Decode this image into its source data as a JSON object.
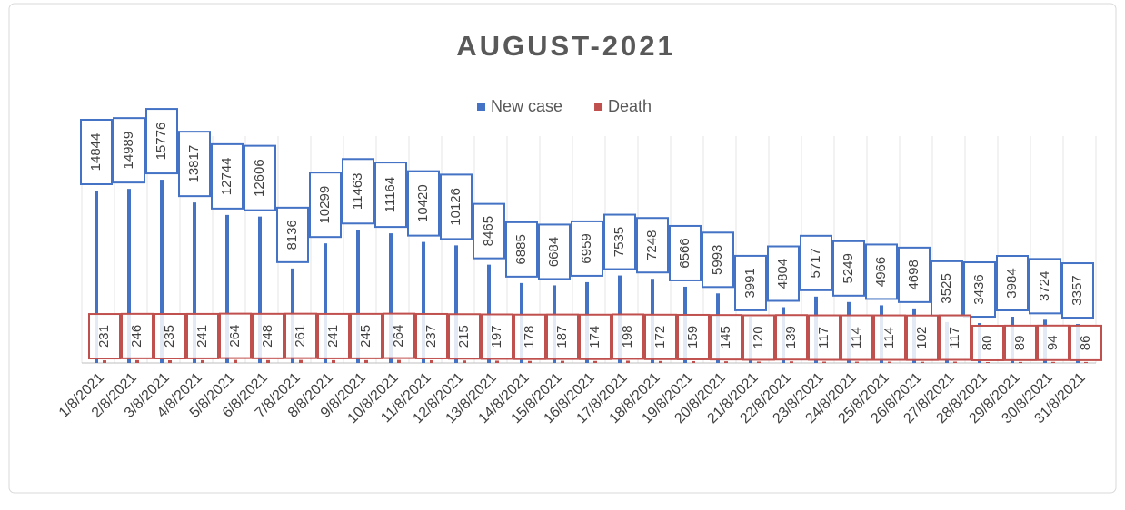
{
  "chart_data": {
    "type": "bar",
    "title": "AUGUST-2021",
    "categories": [
      "1/8/2021",
      "2/8/2021",
      "3/8/2021",
      "4/8/2021",
      "5/8/2021",
      "6/8/2021",
      "7/8/2021",
      "8/8/2021",
      "9/8/2021",
      "10/8/2021",
      "11/8/2021",
      "12/8/2021",
      "13/8/2021",
      "14/8/2021",
      "15/8/2021",
      "16/8/2021",
      "17/8/2021",
      "18/8/2021",
      "19/8/2021",
      "20/8/2021",
      "21/8/2021",
      "22/8/2021",
      "23/8/2021",
      "24/8/2021",
      "25/8/2021",
      "26/8/2021",
      "27/8/2021",
      "28/8/2021",
      "29/8/2021",
      "30/8/2021",
      "31/8/2021"
    ],
    "series": [
      {
        "name": "New case",
        "color": "#4472c4",
        "values": [
          14844,
          14989,
          15776,
          13817,
          12744,
          12606,
          8136,
          10299,
          11463,
          11164,
          10420,
          10126,
          8465,
          6885,
          6684,
          6959,
          7535,
          7248,
          6566,
          5993,
          3991,
          4804,
          5717,
          5249,
          4966,
          4698,
          3525,
          3436,
          3984,
          3724,
          3357
        ]
      },
      {
        "name": "Death",
        "color": "#c0504d",
        "values": [
          231,
          246,
          235,
          241,
          264,
          248,
          261,
          241,
          245,
          264,
          237,
          215,
          197,
          178,
          187,
          174,
          198,
          172,
          159,
          145,
          120,
          139,
          117,
          114,
          114,
          102,
          117,
          80,
          89,
          94,
          86
        ]
      }
    ],
    "legend": "top"
  }
}
